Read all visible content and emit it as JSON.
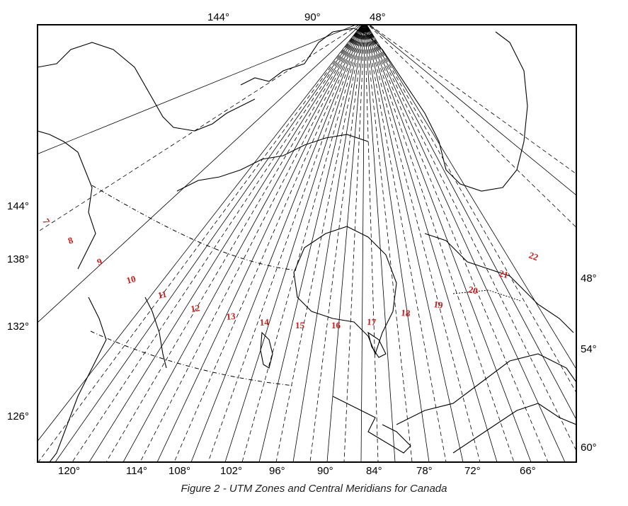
{
  "caption": "Figure 2 - UTM Zones and Central Meridians for Canada",
  "colors": {
    "zone_label": "#d11a1a",
    "lines": "#000000",
    "background": "#ffffff"
  },
  "top_labels": [
    "144°",
    "90°",
    "48°"
  ],
  "left_labels": [
    "144°",
    "138°",
    "132°",
    "126°"
  ],
  "right_labels": [
    "48°",
    "54°",
    "60°"
  ],
  "bottom_labels": [
    "120°",
    "114°",
    "108°",
    "102°",
    "96°",
    "90°",
    "84°",
    "78°",
    "72°",
    "66°"
  ],
  "zone_labels": [
    "7",
    "8",
    "9",
    "10",
    "11",
    "12",
    "13",
    "14",
    "15",
    "16",
    "17",
    "18",
    "19",
    "20",
    "21",
    "22"
  ]
}
